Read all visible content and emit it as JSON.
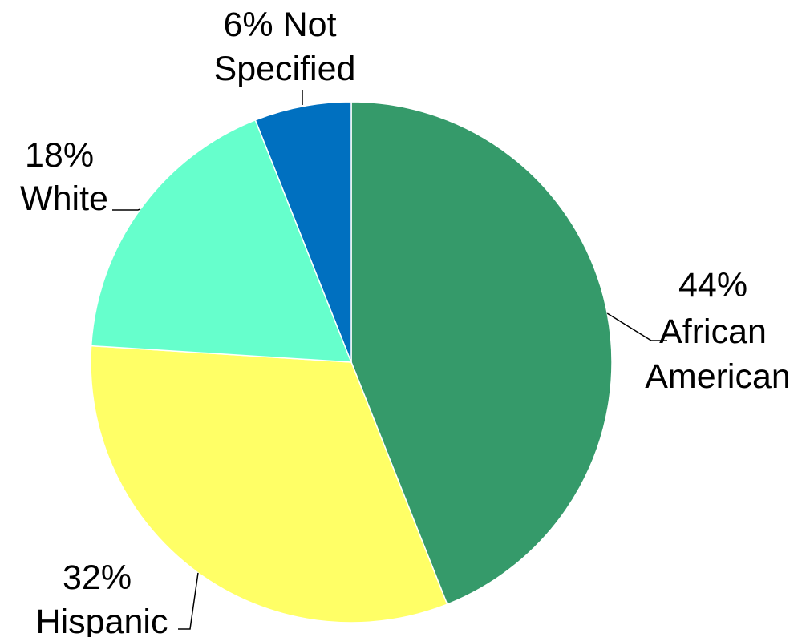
{
  "chart_data": {
    "type": "pie",
    "start_angle_deg": 0,
    "direction": "clockwise",
    "slices": [
      {
        "name": "African American",
        "value": 44,
        "color": "#359a6a",
        "label_lines": [
          "44%",
          "African",
          "American"
        ]
      },
      {
        "name": "Hispanic",
        "value": 32,
        "color": "#ffff66",
        "label_lines": [
          "32%",
          "Hispanic"
        ]
      },
      {
        "name": "White",
        "value": 18,
        "color": "#66ffcc",
        "label_lines": [
          "18%",
          "White"
        ]
      },
      {
        "name": "Not Specified",
        "value": 6,
        "color": "#0070c0",
        "label_lines": [
          "6% Not",
          "Specified"
        ]
      }
    ]
  }
}
